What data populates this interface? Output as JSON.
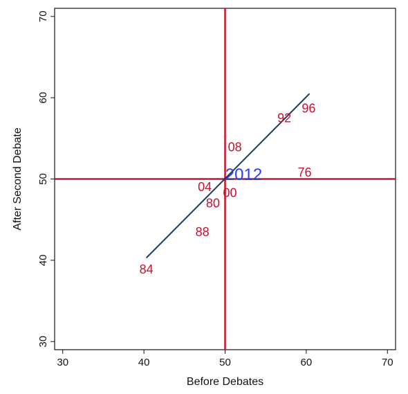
{
  "chart_data": {
    "type": "scatter",
    "xlabel": "Before Debates",
    "ylabel": "After Second Debate",
    "xlim": [
      29,
      71
    ],
    "ylim": [
      29,
      71
    ],
    "x_ticks": [
      30,
      40,
      50,
      60,
      70
    ],
    "y_ticks": [
      30,
      40,
      50,
      60,
      70
    ],
    "grid": false,
    "colors": {
      "points": "#c8102e",
      "highlight": "#2b3df5",
      "fit_line": "#1f3b63",
      "ref_lines": "#c8102e",
      "axis": "#111111"
    },
    "reference_lines": {
      "x": 50,
      "y": 50
    },
    "points": [
      {
        "label": "96",
        "x": 60.3,
        "y": 58.7
      },
      {
        "label": "92",
        "x": 57.3,
        "y": 57.5
      },
      {
        "label": "08",
        "x": 51.2,
        "y": 53.9
      },
      {
        "label": "76",
        "x": 59.8,
        "y": 50.8
      },
      {
        "label": "04",
        "x": 47.5,
        "y": 49.0
      },
      {
        "label": "00",
        "x": 50.6,
        "y": 48.3
      },
      {
        "label": "80",
        "x": 48.5,
        "y": 47.0
      },
      {
        "label": "88",
        "x": 47.2,
        "y": 43.5
      },
      {
        "label": "84",
        "x": 40.3,
        "y": 38.9
      }
    ],
    "highlight": {
      "label": "2012",
      "x": 52.3,
      "y": 50.5
    },
    "fit_line": {
      "x": [
        40.3,
        60.4
      ],
      "y": [
        40.3,
        60.5
      ]
    }
  }
}
